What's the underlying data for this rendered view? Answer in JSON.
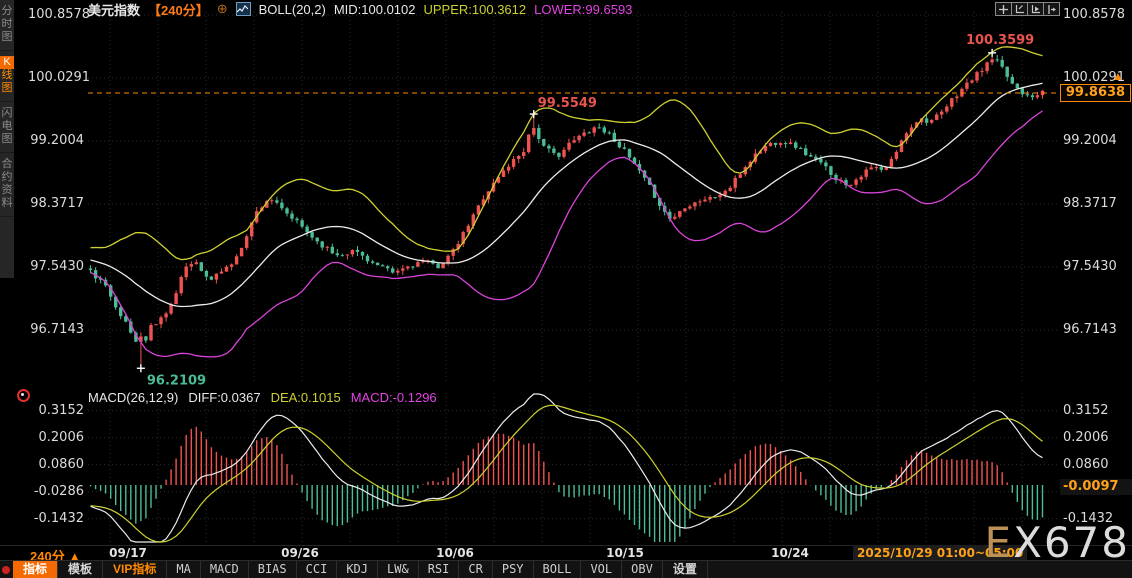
{
  "header": {
    "symbol": "美元指数",
    "period": "【240分】",
    "icons": {
      "collapse": "⊕"
    },
    "boll_label": "BOLL(20,2)",
    "mid": "MID:100.0102",
    "upper": "UPPER:100.3612",
    "lower": "LOWER:99.6593"
  },
  "top_icons": [
    "crosshair-icon",
    "zoom-axis-icon",
    "play-axis-icon",
    "pan-right-icon"
  ],
  "sidebar": {
    "tabs": [
      {
        "label": "分时图",
        "active": false
      },
      {
        "label": "K线图",
        "active": true
      },
      {
        "label": "闪电图",
        "active": false
      },
      {
        "label": "合约资料",
        "active": false
      }
    ]
  },
  "macd_header": {
    "label": "MACD(26,12,9)",
    "diff": "DIFF:0.0367",
    "dea": "DEA:0.1015",
    "macd": "MACD:-0.1296"
  },
  "price_labels": {
    "current": "99.8638",
    "arrow": "▲",
    "macd_current": "-0.0097",
    "datetime": "2025/10/29 01:00~05:00",
    "period_tab": "240分 ▲"
  },
  "bottom_toolbar": {
    "tabs": [
      {
        "label": "指标",
        "style": "active"
      },
      {
        "label": "模板",
        "style": ""
      },
      {
        "label": "VIP指标",
        "style": "vip"
      }
    ],
    "indicators": [
      "MA",
      "MACD",
      "BIAS",
      "CCI",
      "KDJ",
      "LW&",
      "RSI",
      "CR",
      "PSY",
      "BOLL",
      "VOL",
      "OBV"
    ],
    "settings": "设置"
  },
  "watermark": "EX678",
  "colors": {
    "up": "#ef5350",
    "down": "#4cbc96",
    "boll_upper": "#cdd130",
    "boll_mid": "#ececec",
    "boll_lower": "#d943d9",
    "diff_line": "#ececec",
    "dea_line": "#cdd130",
    "hist_pos": "#ef5350",
    "hist_neg": "#4cbc96",
    "accent": "#ff8a00",
    "annotation": "#e8544e",
    "grid": "#2d2d2d"
  },
  "chart_data": {
    "type": "candlestick",
    "title": "美元指数 240分钟K线 + BOLL(20,2) + MACD(26,12,9)",
    "n_candles": 190,
    "y_axis": {
      "ticks": [
        100.8578,
        100.0291,
        99.2004,
        98.3717,
        97.543,
        96.7143
      ]
    },
    "macd_axis": {
      "ticks": [
        0.3152,
        0.2006,
        0.086,
        -0.0286,
        -0.1432
      ],
      "current": -0.0097
    },
    "x_axis": {
      "labels": [
        {
          "t": "09/17",
          "f": 0.042
        },
        {
          "t": "09/26",
          "f": 0.222
        },
        {
          "t": "10/06",
          "f": 0.384
        },
        {
          "t": "10/15",
          "f": 0.561
        },
        {
          "t": "10/24",
          "f": 0.734
        }
      ]
    },
    "key_points": {
      "low": {
        "f": 0.053,
        "value": 96.2109
      },
      "swing_high": {
        "f": 0.464,
        "value": 99.5549
      },
      "high": {
        "f": 0.949,
        "value": 100.3599
      },
      "last_close": 99.8638
    },
    "indicators": {
      "boll": {
        "period": 20,
        "k": 2,
        "mid": 100.0102,
        "upper": 100.3612,
        "lower": 99.6593
      },
      "macd": {
        "fast": 12,
        "slow": 26,
        "signal": 9,
        "diff": 0.0367,
        "dea": 0.1015,
        "macd": -0.1296
      }
    },
    "pre_window_path": [
      [
        0,
        98.05
      ],
      [
        0.35,
        97.9
      ],
      [
        0.65,
        97.7
      ],
      [
        1,
        97.52
      ]
    ],
    "price_path": [
      [
        0.0,
        97.48
      ],
      [
        0.015,
        97.3
      ],
      [
        0.035,
        96.85
      ],
      [
        0.048,
        96.55
      ],
      [
        0.053,
        96.34
      ],
      [
        0.062,
        96.75
      ],
      [
        0.075,
        96.88
      ],
      [
        0.088,
        97.12
      ],
      [
        0.1,
        97.55
      ],
      [
        0.112,
        97.62
      ],
      [
        0.124,
        97.35
      ],
      [
        0.138,
        97.5
      ],
      [
        0.152,
        97.62
      ],
      [
        0.165,
        98.0
      ],
      [
        0.175,
        98.28
      ],
      [
        0.188,
        98.46
      ],
      [
        0.202,
        98.28
      ],
      [
        0.218,
        98.12
      ],
      [
        0.238,
        97.88
      ],
      [
        0.258,
        97.7
      ],
      [
        0.278,
        97.76
      ],
      [
        0.298,
        97.58
      ],
      [
        0.318,
        97.46
      ],
      [
        0.335,
        97.56
      ],
      [
        0.35,
        97.62
      ],
      [
        0.365,
        97.55
      ],
      [
        0.382,
        97.76
      ],
      [
        0.398,
        98.12
      ],
      [
        0.412,
        98.45
      ],
      [
        0.428,
        98.72
      ],
      [
        0.442,
        98.92
      ],
      [
        0.455,
        99.08
      ],
      [
        0.464,
        99.42
      ],
      [
        0.476,
        99.12
      ],
      [
        0.49,
        99.0
      ],
      [
        0.503,
        99.16
      ],
      [
        0.518,
        99.3
      ],
      [
        0.532,
        99.4
      ],
      [
        0.546,
        99.28
      ],
      [
        0.56,
        99.08
      ],
      [
        0.574,
        98.84
      ],
      [
        0.588,
        98.58
      ],
      [
        0.602,
        98.28
      ],
      [
        0.61,
        98.16
      ],
      [
        0.624,
        98.34
      ],
      [
        0.64,
        98.42
      ],
      [
        0.655,
        98.46
      ],
      [
        0.67,
        98.56
      ],
      [
        0.684,
        98.8
      ],
      [
        0.698,
        99.02
      ],
      [
        0.712,
        99.16
      ],
      [
        0.726,
        99.2
      ],
      [
        0.74,
        99.14
      ],
      [
        0.755,
        99.0
      ],
      [
        0.77,
        98.88
      ],
      [
        0.784,
        98.7
      ],
      [
        0.796,
        98.62
      ],
      [
        0.81,
        98.76
      ],
      [
        0.822,
        98.86
      ],
      [
        0.834,
        98.8
      ],
      [
        0.846,
        99.05
      ],
      [
        0.858,
        99.34
      ],
      [
        0.87,
        99.5
      ],
      [
        0.882,
        99.46
      ],
      [
        0.894,
        99.56
      ],
      [
        0.906,
        99.76
      ],
      [
        0.918,
        99.92
      ],
      [
        0.93,
        100.06
      ],
      [
        0.941,
        100.2
      ],
      [
        0.949,
        100.3
      ],
      [
        0.958,
        100.14
      ],
      [
        0.968,
        99.96
      ],
      [
        0.979,
        99.84
      ],
      [
        0.99,
        99.8
      ],
      [
        1.0,
        99.864
      ]
    ]
  }
}
